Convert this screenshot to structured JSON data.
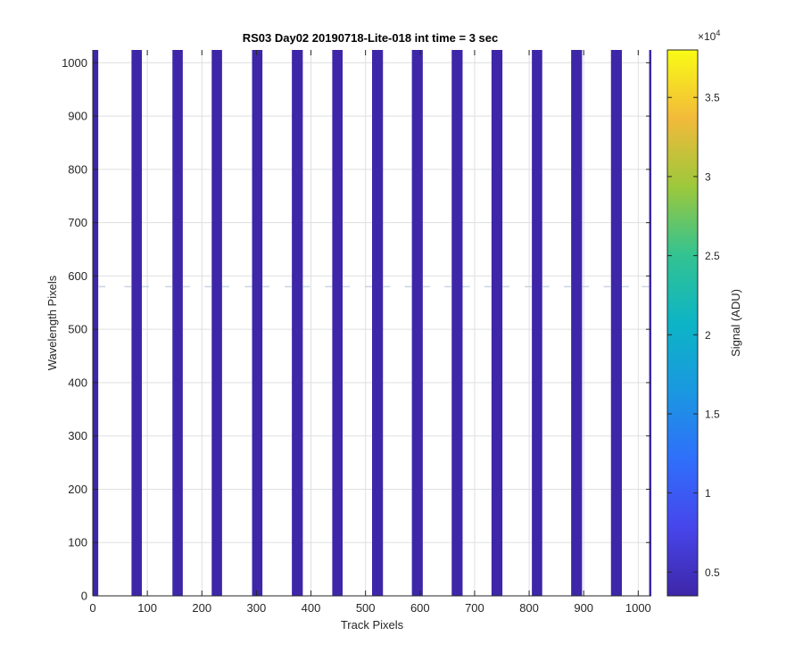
{
  "chart_data": {
    "type": "heatmap",
    "title": "RS03 Day02 20190718-Lite-018 int time = 3 sec",
    "xlabel": "Track Pixels",
    "ylabel": "Wavelength Pixels",
    "xlim": [
      0,
      1024
    ],
    "ylim": [
      0,
      1024
    ],
    "xticks": [
      0,
      100,
      200,
      300,
      400,
      500,
      600,
      700,
      800,
      900,
      1000
    ],
    "yticks": [
      0,
      100,
      200,
      300,
      400,
      500,
      600,
      700,
      800,
      900,
      1000
    ],
    "grid": true,
    "background_color": "#ffffff",
    "band_color": "#3e26a8",
    "band_value_adu": 3700,
    "stripes": [
      {
        "x0": 0,
        "x1": 10
      },
      {
        "x0": 71,
        "x1": 90
      },
      {
        "x0": 146,
        "x1": 165
      },
      {
        "x0": 218,
        "x1": 237
      },
      {
        "x0": 292,
        "x1": 311
      },
      {
        "x0": 365,
        "x1": 385
      },
      {
        "x0": 439,
        "x1": 458
      },
      {
        "x0": 512,
        "x1": 532
      },
      {
        "x0": 585,
        "x1": 605
      },
      {
        "x0": 658,
        "x1": 678
      },
      {
        "x0": 731,
        "x1": 751
      },
      {
        "x0": 805,
        "x1": 824
      },
      {
        "x0": 877,
        "x1": 897
      },
      {
        "x0": 950,
        "x1": 970
      },
      {
        "x0": 1020,
        "x1": 1024
      }
    ],
    "artifact_row_y": 580,
    "colorbar": {
      "label": "Signal (ADU)",
      "min": 3500,
      "max": 38000,
      "exponent_label": "×10",
      "exponent_power": "4",
      "ticks": [
        {
          "value": 5000,
          "label": "0.5"
        },
        {
          "value": 10000,
          "label": "1"
        },
        {
          "value": 15000,
          "label": "1.5"
        },
        {
          "value": 20000,
          "label": "2"
        },
        {
          "value": 25000,
          "label": "2.5"
        },
        {
          "value": 30000,
          "label": "3"
        },
        {
          "value": 35000,
          "label": "3.5"
        }
      ],
      "colormap": "parula"
    }
  }
}
